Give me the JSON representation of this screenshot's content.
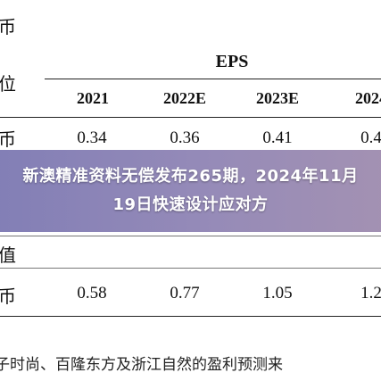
{
  "banner": {
    "title": "新澳精准资料无偿发布265期，2024年11月19日快速设计应对方"
  },
  "table": {
    "top_fragment": "币",
    "unit_header": "位",
    "group_header": "EPS",
    "years": [
      "2021",
      "2022E",
      "2023E",
      "2024"
    ],
    "rows": [
      {
        "label": "币",
        "values": [
          "0.34",
          "0.36",
          "0.41",
          "0.4"
        ]
      },
      {
        "label": "值",
        "values": []
      },
      {
        "label": "币",
        "values": [
          "0.58",
          "0.77",
          "1.05",
          "1.2"
        ]
      }
    ],
    "row_labels": {
      "r1": "币",
      "hidden_row": "",
      "r2_group": "值",
      "r3": "币"
    }
  },
  "footnote": "子时尚、百隆东方及浙江自然的盈利预测来"
}
